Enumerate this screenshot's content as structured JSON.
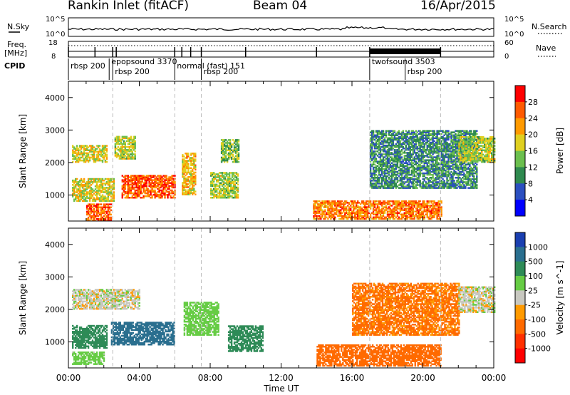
{
  "header": {
    "title": "Rankin Inlet (fitACF)",
    "beam": "Beam 04",
    "date": "16/Apr/2015"
  },
  "panels": {
    "nsky_label": "N.Sky",
    "nsearch_label": "N.Search",
    "freq_label_line1": "Freq.",
    "freq_label_line2": "[MHz]",
    "nave_label": "Nave",
    "cpid_label": "CPID",
    "nsky_ticks": [
      "10^5",
      "10^0"
    ],
    "nsearch_ticks": [
      "10^5",
      "10^0"
    ],
    "freq_ticks": [
      "18",
      "8"
    ],
    "nave_ticks": [
      "60",
      "0"
    ],
    "cpid_segments": [
      {
        "label": "rbsp 200",
        "start_h": 0.0,
        "end_h": 2.5
      },
      {
        "label": "rbsp 200",
        "start_h": 2.5,
        "end_h": 6.0
      },
      {
        "label": "epopsound 3370",
        "start_h": 2.3,
        "end_h": 6.0
      },
      {
        "label": "normal (fast) 151",
        "start_h": 6.0,
        "end_h": 7.5
      },
      {
        "label": "rbsp 200",
        "start_h": 7.5,
        "end_h": 17.0
      },
      {
        "label": "twofsound 3503",
        "start_h": 17.0,
        "end_h": 21.0
      },
      {
        "label": "rbsp 200",
        "start_h": 19.0,
        "end_h": 21.0
      }
    ]
  },
  "chart_data": [
    {
      "type": "heatmap",
      "title": "",
      "ylabel": "Slant Range [km]",
      "xlabel": "",
      "xlim": [
        0,
        24
      ],
      "ylim": [
        200,
        4500
      ],
      "y_ticks": [
        "1000",
        "2000",
        "3000",
        "4000"
      ],
      "colorbar": {
        "label": "Power [dB]",
        "ticks": [
          "4",
          "8",
          "12",
          "16",
          "20",
          "24",
          "28"
        ],
        "colors": [
          "#0000ff",
          "#2b4fc0",
          "#2f8a4f",
          "#6bbf4e",
          "#e0d020",
          "#ff9a00",
          "#ff5a00",
          "#ff0000"
        ]
      },
      "regions": [
        {
          "t0": 0.2,
          "t1": 2.2,
          "r0": 2000,
          "r1": 2500,
          "level": 18
        },
        {
          "t0": 0.2,
          "t1": 2.6,
          "r0": 800,
          "r1": 1500,
          "level": 18
        },
        {
          "t0": 1.0,
          "t1": 2.4,
          "r0": 200,
          "r1": 700,
          "level": 26
        },
        {
          "t0": 2.6,
          "t1": 3.8,
          "r0": 2100,
          "r1": 2800,
          "level": 16
        },
        {
          "t0": 3.0,
          "t1": 6.0,
          "r0": 900,
          "r1": 1600,
          "level": 26
        },
        {
          "t0": 6.4,
          "t1": 7.2,
          "r0": 1000,
          "r1": 2300,
          "level": 20
        },
        {
          "t0": 8.0,
          "t1": 9.6,
          "r0": 900,
          "r1": 1700,
          "level": 16
        },
        {
          "t0": 8.6,
          "t1": 9.6,
          "r0": 2000,
          "r1": 2700,
          "level": 14
        },
        {
          "t0": 13.8,
          "t1": 21.0,
          "r0": 250,
          "r1": 800,
          "level": 24
        },
        {
          "t0": 17.0,
          "t1": 23.0,
          "r0": 1200,
          "r1": 3000,
          "level": 10
        },
        {
          "t0": 22.0,
          "t1": 24.0,
          "r0": 2000,
          "r1": 2800,
          "level": 16
        }
      ]
    },
    {
      "type": "heatmap",
      "title": "",
      "ylabel": "Slant Range [km]",
      "xlabel": "Time UT",
      "xlim": [
        0,
        24
      ],
      "ylim": [
        200,
        4500
      ],
      "x_ticks": [
        "00:00",
        "04:00",
        "08:00",
        "12:00",
        "16:00",
        "20:00",
        "00:00"
      ],
      "y_ticks": [
        "1000",
        "2000",
        "3000",
        "4000"
      ],
      "colorbar": {
        "label": "Velocity [m s^-1]",
        "ticks": [
          "1000",
          "500",
          "100",
          "25",
          "-25",
          "-100",
          "-500",
          "-1000"
        ],
        "colors": [
          "#1a3fb0",
          "#2a6f8f",
          "#2e8b57",
          "#66cc44",
          "#c8c8c0",
          "#ff9a00",
          "#ff6a00",
          "#ff3000",
          "#ff0000"
        ]
      },
      "regions": [
        {
          "t0": 0.2,
          "t1": 4.0,
          "r0": 2000,
          "r1": 2600,
          "velocity": 0
        },
        {
          "t0": 0.2,
          "t1": 2.2,
          "r0": 800,
          "r1": 1500,
          "velocity": 300
        },
        {
          "t0": 2.4,
          "t1": 6.0,
          "r0": 900,
          "r1": 1600,
          "velocity": 900
        },
        {
          "t0": 0.2,
          "t1": 2.0,
          "r0": 300,
          "r1": 700,
          "velocity": 60
        },
        {
          "t0": 6.5,
          "t1": 8.5,
          "r0": 1200,
          "r1": 2200,
          "velocity": 60
        },
        {
          "t0": 9.0,
          "t1": 11.0,
          "r0": 700,
          "r1": 1500,
          "velocity": 200
        },
        {
          "t0": 14.0,
          "t1": 21.0,
          "r0": 250,
          "r1": 900,
          "velocity": -150
        },
        {
          "t0": 16.0,
          "t1": 22.0,
          "r0": 1200,
          "r1": 2800,
          "velocity": -120
        },
        {
          "t0": 22.0,
          "t1": 24.0,
          "r0": 1900,
          "r1": 2700,
          "velocity": 0
        }
      ]
    }
  ]
}
